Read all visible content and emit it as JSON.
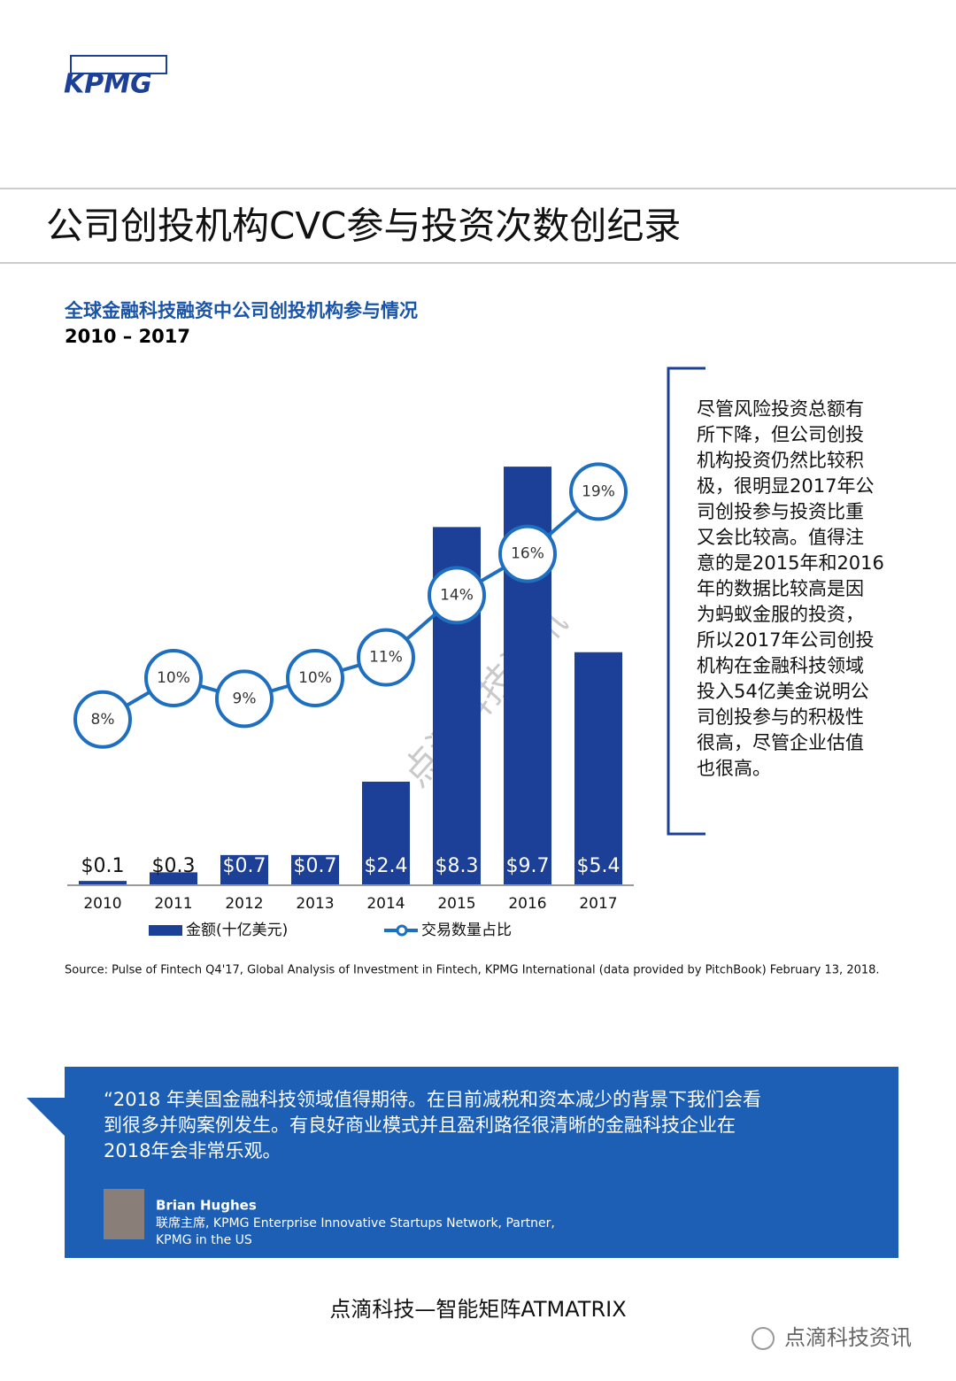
{
  "header": {
    "logo": "KPMG",
    "title": "公司创投机构CVC参与投资次数创纪录"
  },
  "chart_data": {
    "type": "bar",
    "title": "全球金融科技融资中公司创投机构参与情况",
    "subtitle": "2010 – 2017",
    "categories": [
      "2010",
      "2011",
      "2012",
      "2013",
      "2014",
      "2015",
      "2016",
      "2017"
    ],
    "series": [
      {
        "name": "金额(十亿美元)",
        "type": "bar",
        "color": "#1c3f97",
        "values": [
          0.1,
          0.3,
          0.7,
          0.7,
          2.4,
          8.3,
          9.7,
          5.4
        ],
        "value_labels": [
          "$0.1",
          "$0.3",
          "$0.7",
          "$0.7",
          "$2.4",
          "$8.3",
          "$9.7",
          "$5.4"
        ]
      },
      {
        "name": "交易数量占比",
        "type": "line",
        "axis": "y2",
        "color": "#1f6fc0",
        "values": [
          8,
          10,
          9,
          10,
          11,
          14,
          16,
          19
        ],
        "value_labels": [
          "8%",
          "10%",
          "9%",
          "10%",
          "11%",
          "14%",
          "16%",
          "19%"
        ]
      }
    ],
    "ylim": [
      0,
      12
    ],
    "y2lim": [
      0,
      25
    ],
    "legend": "bottom"
  },
  "sidebar": {
    "lines": [
      "尽管风险投资总额有",
      "所下降，但公司创投",
      "机构投资仍然比较积",
      "极，很明显2017年公",
      "司创投参与投资比重",
      "又会比较高。值得注",
      "意的是2015年和2016",
      "年的数据比较高是因",
      "为蚂蚁金服的投资，",
      "所以2017年公司创投",
      "机构在金融科技领域",
      "投入54亿美金说明公",
      "司创投参与的积极性",
      "很高，尽管企业估值",
      "也很高。"
    ]
  },
  "watermark": "点滴科技资讯",
  "source": "Source: Pulse of Fintech Q4'17, Global Analysis of Investment in Fintech, KPMG International (data provided by PitchBook) February 13, 2018.",
  "quote": {
    "lines": [
      "“2018  年美国金融科技领域值得期待。在目前减税和资本减少的背景下我们会看",
      "到很多并购案例发生。有良好商业模式并且盈利路径很清晰的金融科技企业在",
      "2018年会非常乐观。"
    ],
    "name": "Brian Hughes",
    "role_lines": [
      "联席主席, KPMG Enterprise Innovative Startups Network, Partner,",
      "KPMG in the US"
    ]
  },
  "footer": {
    "text": "点滴科技—智能矩阵ATMATRIX",
    "account": "点滴科技资讯"
  }
}
